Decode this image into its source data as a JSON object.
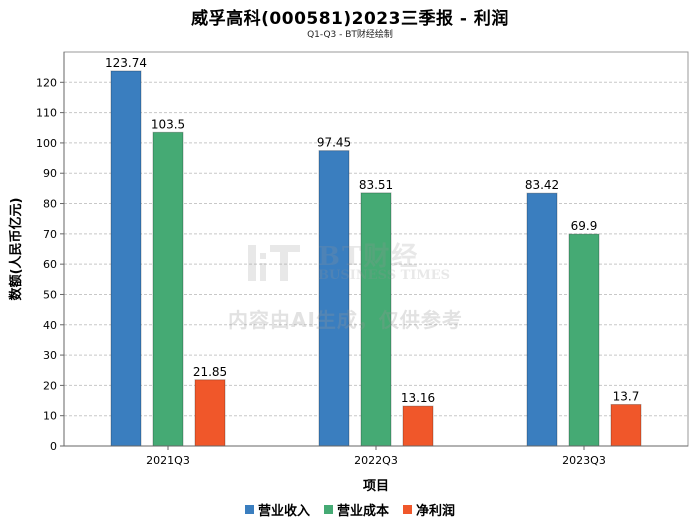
{
  "chart_data": {
    "type": "bar",
    "title": "威孚高科(000581)2023三季报 - 利润",
    "subtitle": "Q1-Q3 - BT财经绘制",
    "xlabel": "项目",
    "ylabel": "数额(人民币亿元)",
    "categories": [
      "2021Q3",
      "2022Q3",
      "2023Q3"
    ],
    "series": [
      {
        "name": "营业收入",
        "values": [
          123.74,
          97.45,
          83.42
        ],
        "labels": [
          "123.74",
          "97.45",
          "83.42"
        ],
        "color": "#3a7ebf"
      },
      {
        "name": "营业成本",
        "values": [
          103.5,
          83.51,
          69.9
        ],
        "labels": [
          "103.5",
          "83.51",
          "69.9"
        ],
        "color": "#45aa74"
      },
      {
        "name": "净利润",
        "values": [
          21.85,
          13.16,
          13.7
        ],
        "labels": [
          "21.85",
          "13.16",
          "13.7"
        ],
        "color": "#f0572a"
      }
    ],
    "ylim": [
      0,
      130
    ],
    "yticks": [
      0,
      10,
      20,
      30,
      40,
      50,
      60,
      70,
      80,
      90,
      100,
      110,
      120
    ],
    "grid": true,
    "legend": "bottom-center"
  },
  "watermark": {
    "brand": "BT财经",
    "brand_en": "BUSINESS TIMES",
    "notice": "内容由AI生成，仅供参考"
  }
}
